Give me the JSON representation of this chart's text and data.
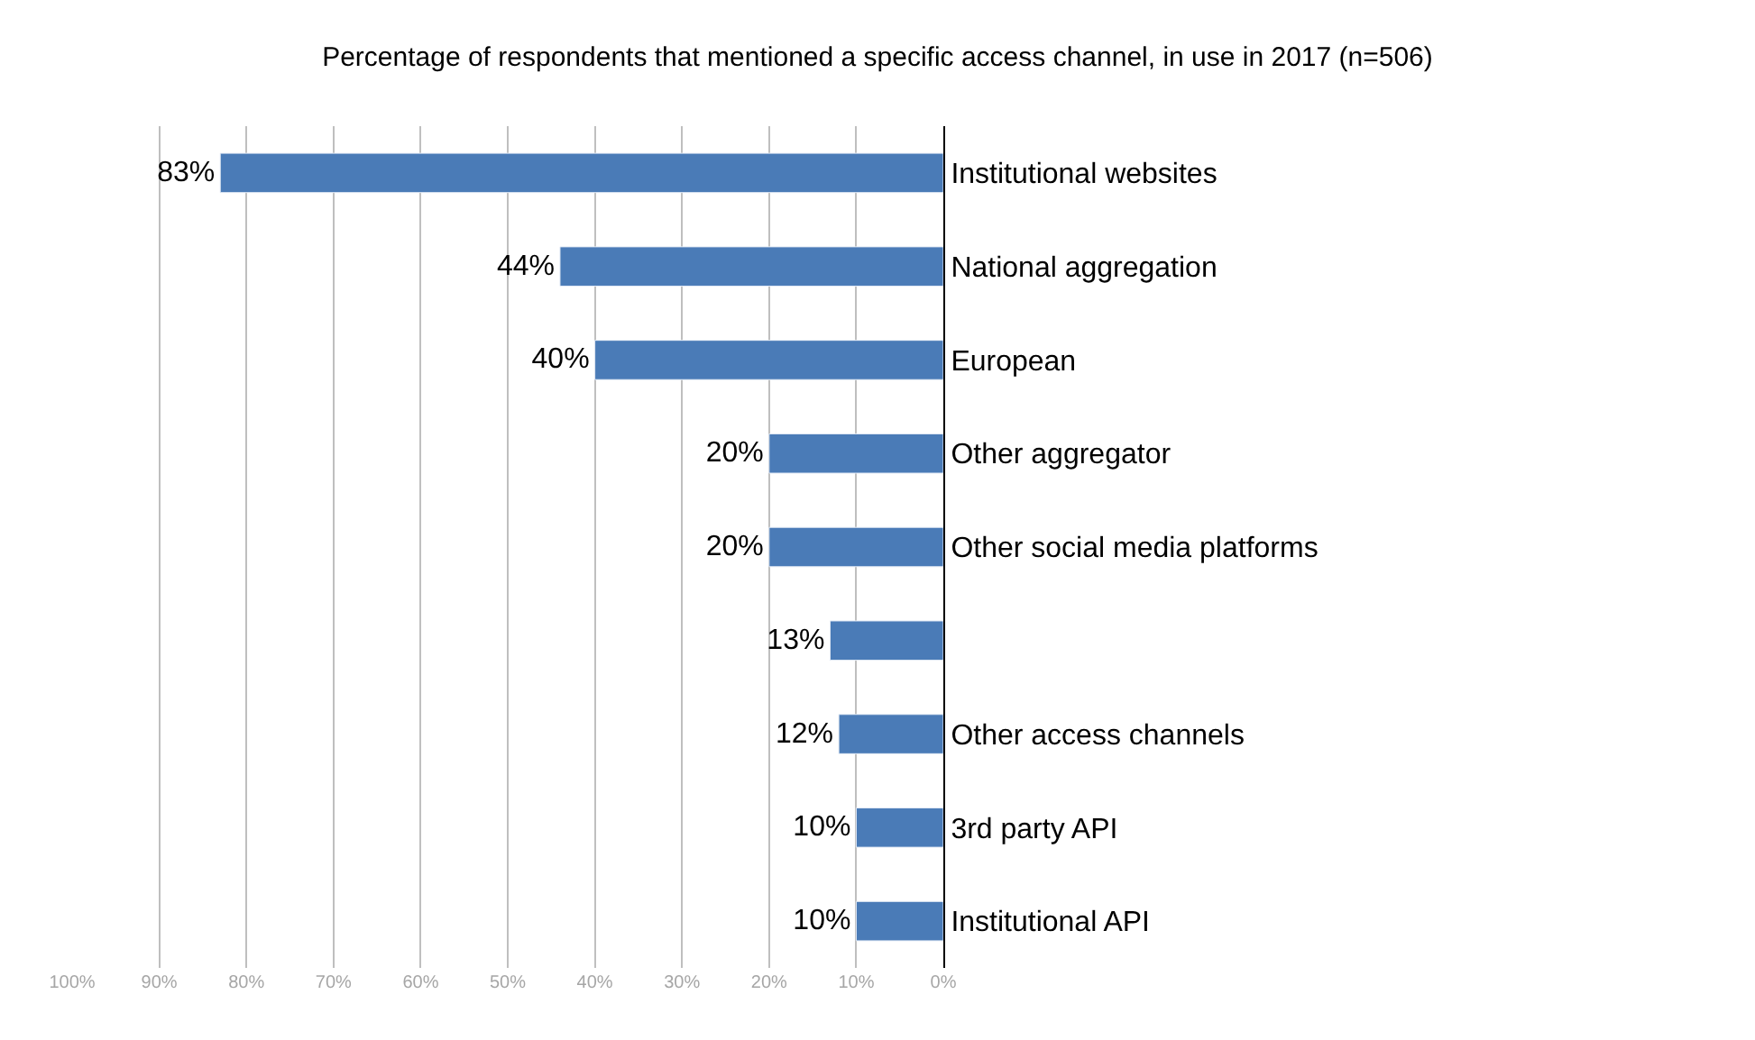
{
  "chart_data": {
    "type": "bar",
    "orientation": "horizontal",
    "title": "Percentage of respondents that mentioned a specific access channel, in use in 2017 (n=506)",
    "categories": [
      "Institutional websites",
      "National aggregation",
      "European",
      "Other aggregator",
      "Other social media platforms",
      null,
      "Other access channels",
      "3rd party API",
      "Institutional API"
    ],
    "values": [
      83,
      44,
      40,
      20,
      20,
      13,
      12,
      10,
      10
    ],
    "value_labels": [
      "83%",
      "44%",
      "40%",
      "20%",
      "20%",
      "13%",
      "12%",
      "10%",
      "10%"
    ],
    "color": "#4a7bb7",
    "xlim": [
      100,
      0
    ],
    "xticks": [
      {
        "value": 100,
        "label": "100%"
      },
      {
        "value": 90,
        "label": "90%"
      },
      {
        "value": 80,
        "label": "80%"
      },
      {
        "value": 70,
        "label": "70%"
      },
      {
        "value": 60,
        "label": "60%"
      },
      {
        "value": 50,
        "label": "50%"
      },
      {
        "value": 40,
        "label": "40%"
      },
      {
        "value": 30,
        "label": "30%"
      },
      {
        "value": 20,
        "label": "20%"
      },
      {
        "value": 10,
        "label": "10%"
      },
      {
        "value": 0,
        "label": "0%"
      }
    ],
    "grid": "x",
    "legend": false
  }
}
